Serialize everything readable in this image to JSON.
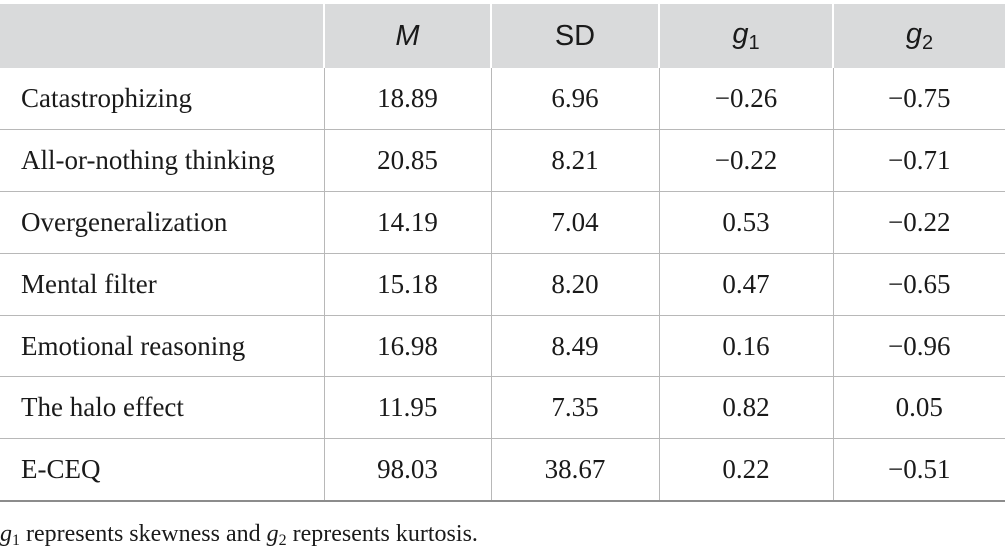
{
  "table": {
    "headers": [
      {
        "base": "",
        "sub": ""
      },
      {
        "base": "M",
        "sub": ""
      },
      {
        "base": "SD",
        "sub": ""
      },
      {
        "base": "g",
        "sub": "1"
      },
      {
        "base": "g",
        "sub": "2"
      }
    ],
    "rows": [
      {
        "label": "Catastrophizing",
        "m": "18.89",
        "sd": "6.96",
        "g1": "−0.26",
        "g2": "−0.75"
      },
      {
        "label": "All-or-nothing thinking",
        "m": "20.85",
        "sd": "8.21",
        "g1": "−0.22",
        "g2": "−0.71"
      },
      {
        "label": "Overgeneralization",
        "m": "14.19",
        "sd": "7.04",
        "g1": "0.53",
        "g2": "−0.22"
      },
      {
        "label": "Mental filter",
        "m": "15.18",
        "sd": "8.20",
        "g1": "0.47",
        "g2": "−0.65"
      },
      {
        "label": "Emotional reasoning",
        "m": "16.98",
        "sd": "8.49",
        "g1": "0.16",
        "g2": "−0.96"
      },
      {
        "label": "The halo effect",
        "m": "11.95",
        "sd": "7.35",
        "g1": "0.82",
        "g2": "0.05"
      },
      {
        "label": "E-CEQ",
        "m": "98.03",
        "sd": "38.67",
        "g1": "0.22",
        "g2": "−0.51"
      }
    ]
  },
  "note": {
    "part1_symbol": "g",
    "part1_sub": "1",
    "part2": " represents skewness and ",
    "part3_symbol": "g",
    "part3_sub": "2",
    "part4": " represents kurtosis."
  }
}
